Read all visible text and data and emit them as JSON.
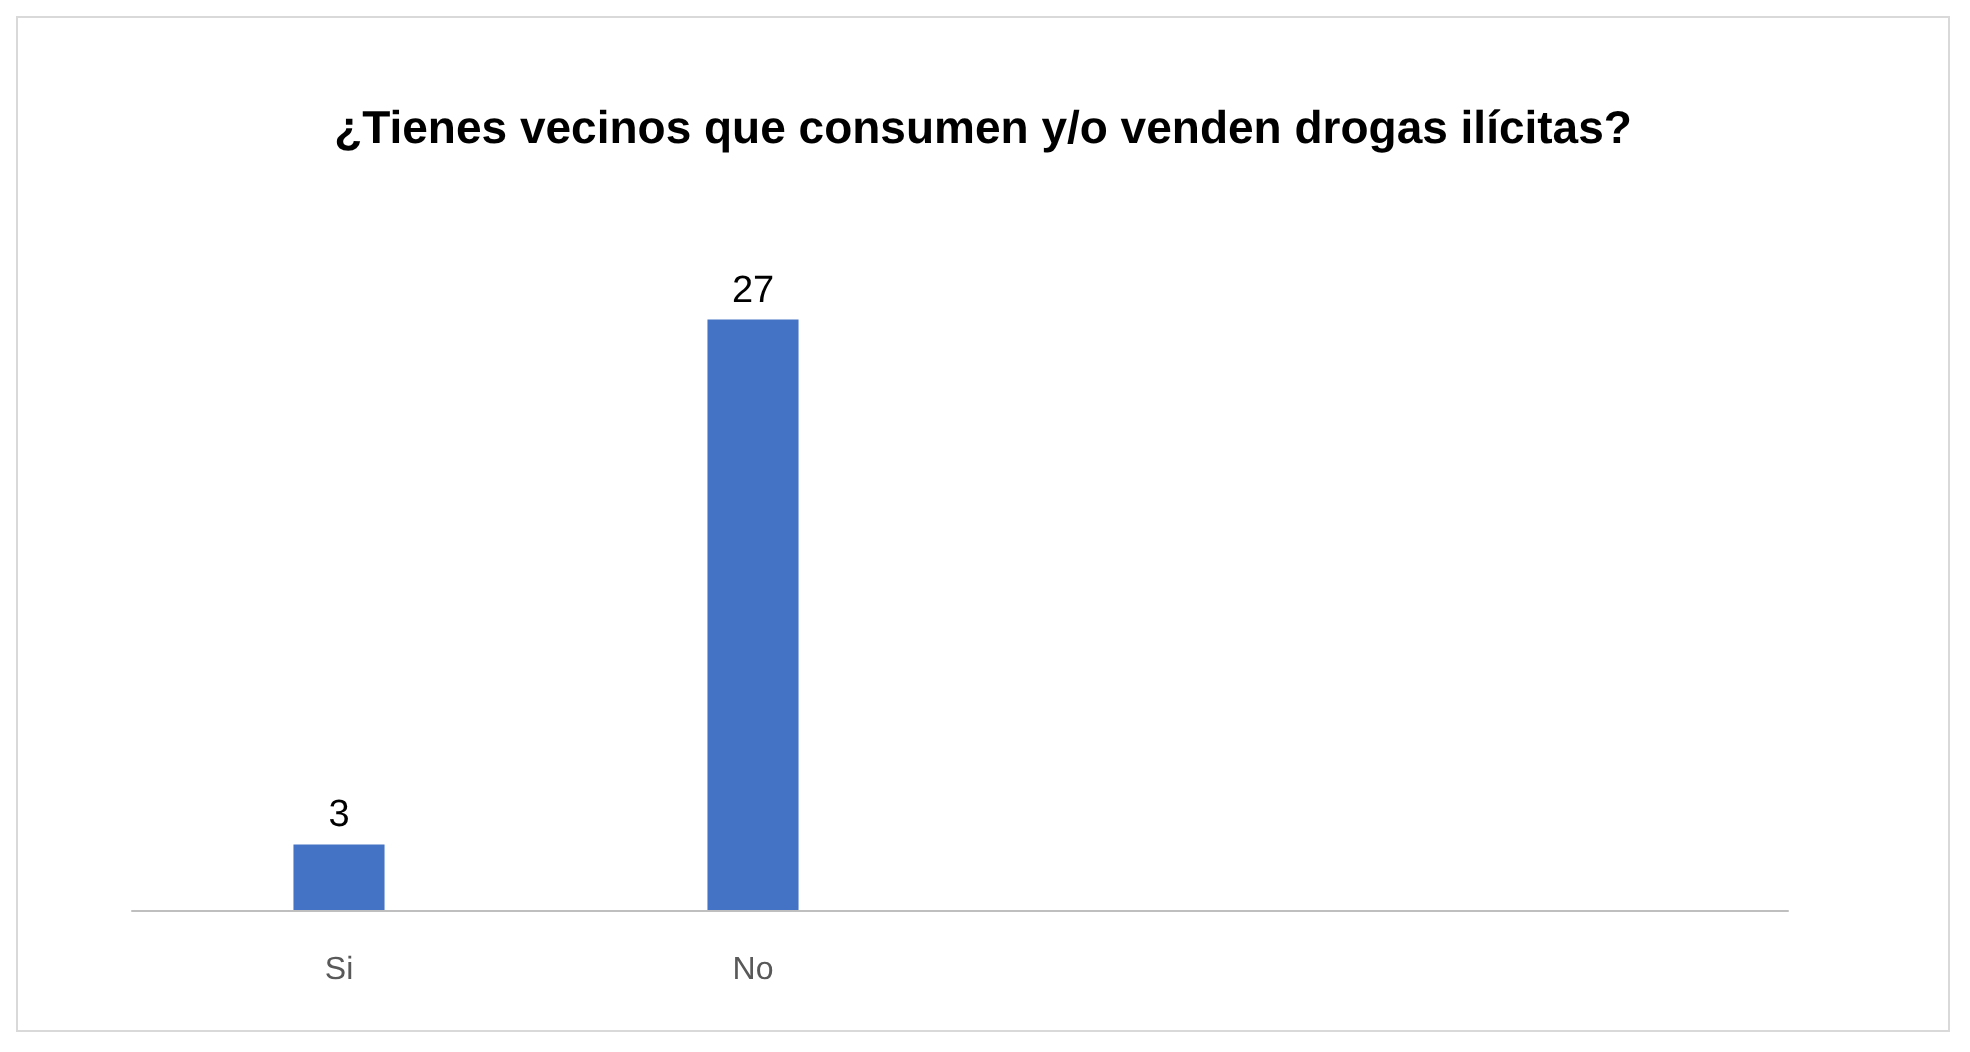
{
  "chart_data": {
    "type": "bar",
    "title": "¿Tienes vecinos que consumen y/o venden drogas ilícitas?",
    "categories": [
      "Si",
      "No",
      null,
      null
    ],
    "values": [
      3,
      27,
      null,
      null
    ],
    "color": "#4472c4",
    "data_labels": true,
    "grid": false,
    "tick_labels": "x"
  }
}
